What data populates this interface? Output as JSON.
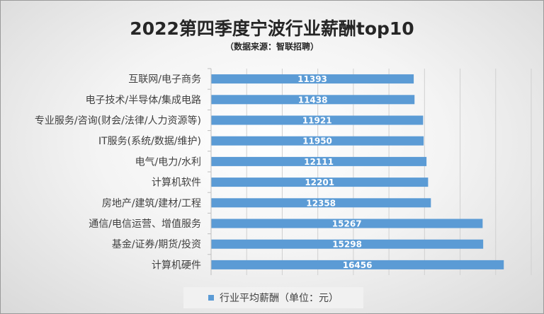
{
  "title": "2022第四季度宁波行业薪酬top10",
  "subtitle": "（数据来源：智联招聘）",
  "chart_data": {
    "type": "bar",
    "orientation": "horizontal",
    "categories": [
      "互联网/电子商务",
      "电子技术/半导体/集成电路",
      "专业服务/咨询(财会/法律/人力资源等)",
      "IT服务(系统/数据/维护)",
      "电气/电力/水利",
      "计算机软件",
      "房地产/建筑/建材/工程",
      "通信/电信运营、增值服务",
      "基金/证券/期货/投资",
      "计算机硬件"
    ],
    "series": [
      {
        "name": "行业平均薪酬（单位：元）",
        "values": [
          11393,
          11438,
          11921,
          11950,
          12111,
          12201,
          12358,
          15267,
          15298,
          16456
        ],
        "color": "#5b9bd5"
      }
    ],
    "xlim": [
      0,
      18000
    ],
    "grid": true,
    "legend": "bottom"
  }
}
